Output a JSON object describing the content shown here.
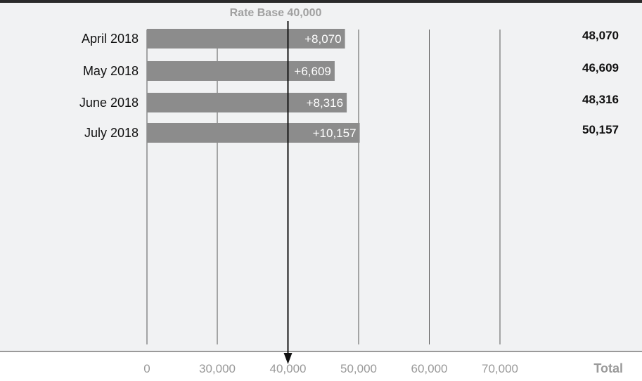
{
  "chart_data": {
    "type": "bar",
    "title": "",
    "base_label": "Rate Base 40,000",
    "base_value": 40000,
    "categories": [
      "April 2018",
      "May 2018",
      "June 2018",
      "July 2018"
    ],
    "deltas": [
      8070,
      6609,
      8316,
      10157
    ],
    "delta_labels": [
      "+8,070",
      "+6,609",
      "+8,316",
      "+10,157"
    ],
    "totals": [
      48070,
      46609,
      48316,
      50157
    ],
    "total_labels": [
      "48,070",
      "46,609",
      "48,316",
      "50,157"
    ],
    "x_ticks": [
      0,
      30000,
      40000,
      50000,
      60000,
      70000
    ],
    "x_tick_labels": [
      "0",
      "30,000",
      "40,000",
      "50,000",
      "60,000",
      "70,000"
    ],
    "total_header": "Total",
    "xlabel": "",
    "ylabel": "",
    "axis_break": "between 0 and 30,000",
    "grid": true,
    "colors": {
      "bar": "#8c8c8c",
      "panel": "#f1f2f3",
      "grid": "#555555",
      "axis_text": "#9a9a9a",
      "header_text": "#a0a0a0",
      "category_text": "#111111",
      "total_text": "#111111",
      "delta_text": "#ffffff",
      "marker": "#111111",
      "top_rule": "#2a2a2a"
    }
  }
}
